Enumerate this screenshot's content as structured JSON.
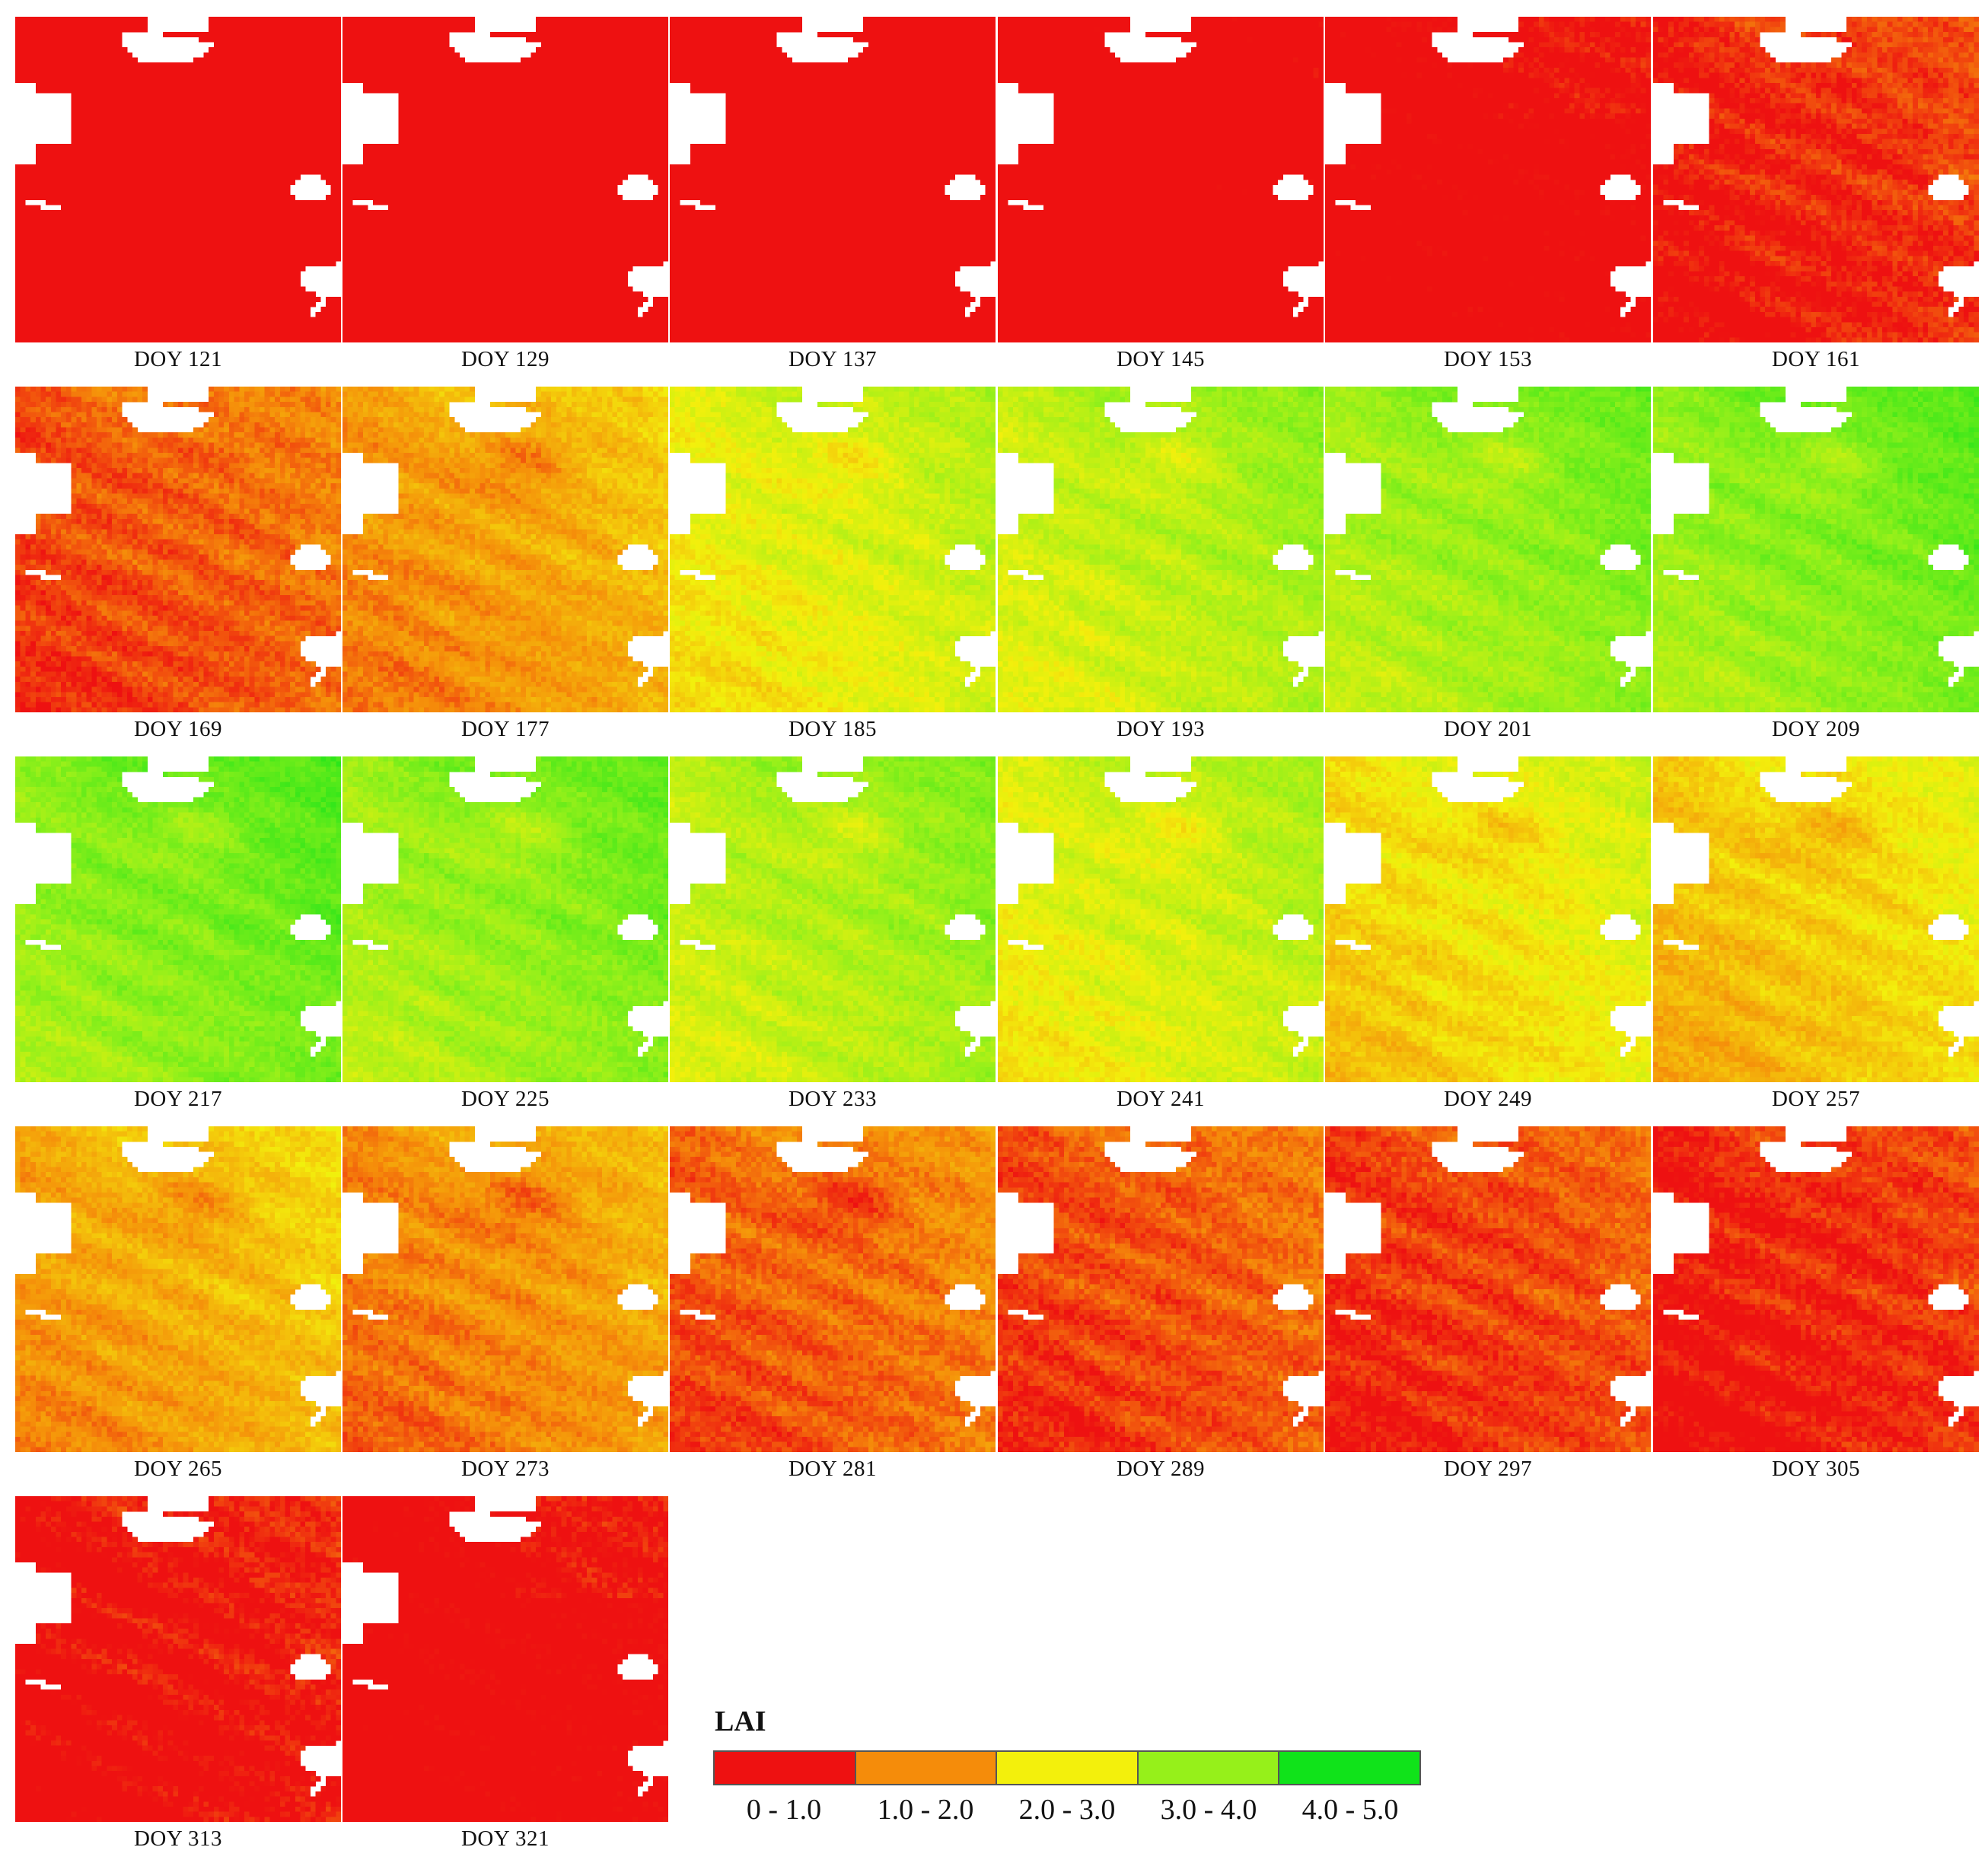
{
  "panels": [
    {
      "label": "DOY 121",
      "lai": 0.45
    },
    {
      "label": "DOY 129",
      "lai": 0.5
    },
    {
      "label": "DOY 137",
      "lai": 0.55
    },
    {
      "label": "DOY 145",
      "lai": 0.7
    },
    {
      "label": "DOY 153",
      "lai": 0.9
    },
    {
      "label": "DOY 161",
      "lai": 1.15
    },
    {
      "label": "DOY 169",
      "lai": 1.45
    },
    {
      "label": "DOY 177",
      "lai": 1.95
    },
    {
      "label": "DOY 185",
      "lai": 2.8
    },
    {
      "label": "DOY 193",
      "lai": 3.1
    },
    {
      "label": "DOY 201",
      "lai": 3.4
    },
    {
      "label": "DOY 209",
      "lai": 3.55
    },
    {
      "label": "DOY 217",
      "lai": 3.6
    },
    {
      "label": "DOY 225",
      "lai": 3.45
    },
    {
      "label": "DOY 233",
      "lai": 3.2
    },
    {
      "label": "DOY 241",
      "lai": 2.9
    },
    {
      "label": "DOY 249",
      "lai": 2.55
    },
    {
      "label": "DOY 257",
      "lai": 2.35
    },
    {
      "label": "DOY 265",
      "lai": 2.05
    },
    {
      "label": "DOY 273",
      "lai": 1.8
    },
    {
      "label": "DOY 281",
      "lai": 1.55
    },
    {
      "label": "DOY 289",
      "lai": 1.4
    },
    {
      "label": "DOY 297",
      "lai": 1.3
    },
    {
      "label": "DOY 305",
      "lai": 1.15
    },
    {
      "label": "DOY 313",
      "lai": 1.0
    },
    {
      "label": "DOY 321",
      "lai": 0.95
    }
  ],
  "legend": {
    "title": "LAI",
    "classes": [
      {
        "label": "0 - 1.0",
        "color": "#ee1111"
      },
      {
        "label": "1.0 - 2.0",
        "color": "#f58c0a"
      },
      {
        "label": "2.0 - 3.0",
        "color": "#f3f00c"
      },
      {
        "label": "3.0 - 4.0",
        "color": "#96f01a"
      },
      {
        "label": "4.0 - 5.0",
        "color": "#10e31a"
      }
    ]
  },
  "stops": [
    {
      "value": 0.0,
      "color": "#ee1111"
    },
    {
      "value": 1.0,
      "color": "#ee1111"
    },
    {
      "value": 1.7,
      "color": "#f58c0a"
    },
    {
      "value": 2.6,
      "color": "#f3f00c"
    },
    {
      "value": 3.4,
      "color": "#96f01a"
    },
    {
      "value": 4.5,
      "color": "#10e31a"
    }
  ]
}
